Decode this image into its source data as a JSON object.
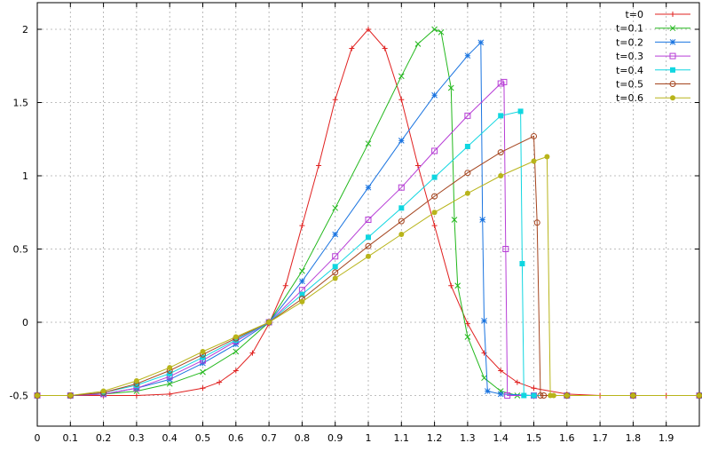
{
  "chart_data": {
    "type": "line",
    "title": "",
    "xlabel": "",
    "ylabel": "",
    "xlim": [
      0,
      2
    ],
    "ylim": [
      -0.5,
      2
    ],
    "grid": true,
    "legend_position": "top-right",
    "x_ticks": [
      "0",
      "0.1",
      "0.2",
      "0.3",
      "0.4",
      "0.5",
      "0.6",
      "0.7",
      "0.8",
      "0.9",
      "1",
      "1.1",
      "1.2",
      "1.3",
      "1.4",
      "1.5",
      "1.6",
      "1.7",
      "1.8",
      "1.9"
    ],
    "y_ticks": [
      "-0.5",
      "0",
      "0.5",
      "1",
      "1.5",
      "2"
    ],
    "series": [
      {
        "name": "t=0",
        "color": "#e0201f",
        "marker": "plus",
        "x": [
          0,
          0.1,
          0.2,
          0.3,
          0.4,
          0.5,
          0.55,
          0.6,
          0.65,
          0.7,
          0.75,
          0.8,
          0.85,
          0.9,
          0.95,
          1.0,
          1.05,
          1.1,
          1.15,
          1.2,
          1.25,
          1.3,
          1.35,
          1.4,
          1.45,
          1.5,
          1.6,
          1.7,
          1.8,
          1.9,
          2.0
        ],
        "y": [
          -0.5,
          -0.5,
          -0.5,
          -0.5,
          -0.49,
          -0.45,
          -0.41,
          -0.33,
          -0.21,
          -0.01,
          0.25,
          0.66,
          1.07,
          1.52,
          1.87,
          2.0,
          1.87,
          1.52,
          1.07,
          0.66,
          0.25,
          -0.01,
          -0.21,
          -0.33,
          -0.41,
          -0.45,
          -0.49,
          -0.5,
          -0.5,
          -0.5,
          -0.5
        ]
      },
      {
        "name": "t=0.1",
        "color": "#22b81c",
        "marker": "cross",
        "x": [
          0,
          0.1,
          0.2,
          0.3,
          0.4,
          0.5,
          0.6,
          0.7,
          0.8,
          0.9,
          1.0,
          1.1,
          1.15,
          1.2,
          1.22,
          1.25,
          1.26,
          1.27,
          1.3,
          1.35,
          1.4,
          1.45,
          1.5,
          1.6,
          1.8,
          2.0
        ],
        "y": [
          -0.5,
          -0.5,
          -0.49,
          -0.47,
          -0.42,
          -0.34,
          -0.2,
          0.0,
          0.35,
          0.78,
          1.22,
          1.68,
          1.9,
          2.0,
          1.98,
          1.6,
          0.7,
          0.25,
          -0.1,
          -0.38,
          -0.47,
          -0.5,
          -0.5,
          -0.5,
          -0.5,
          -0.5
        ]
      },
      {
        "name": "t=0.2",
        "color": "#1a74e0",
        "marker": "star",
        "x": [
          0,
          0.1,
          0.2,
          0.3,
          0.4,
          0.5,
          0.6,
          0.7,
          0.8,
          0.9,
          1.0,
          1.1,
          1.2,
          1.3,
          1.34,
          1.345,
          1.35,
          1.36,
          1.4,
          1.5,
          1.6,
          1.8,
          2.0
        ],
        "y": [
          -0.5,
          -0.5,
          -0.49,
          -0.45,
          -0.39,
          -0.28,
          -0.15,
          0.0,
          0.28,
          0.6,
          0.92,
          1.24,
          1.55,
          1.82,
          1.91,
          0.7,
          0.01,
          -0.47,
          -0.49,
          -0.5,
          -0.5,
          -0.5,
          -0.5
        ]
      },
      {
        "name": "t=0.3",
        "color": "#b73ed6",
        "marker": "square",
        "x": [
          0,
          0.1,
          0.2,
          0.3,
          0.4,
          0.5,
          0.6,
          0.7,
          0.8,
          0.9,
          1.0,
          1.1,
          1.2,
          1.3,
          1.4,
          1.41,
          1.415,
          1.42,
          1.5,
          1.6,
          1.8,
          2.0
        ],
        "y": [
          -0.5,
          -0.5,
          -0.49,
          -0.45,
          -0.37,
          -0.26,
          -0.13,
          0.0,
          0.22,
          0.45,
          0.7,
          0.92,
          1.17,
          1.41,
          1.63,
          1.64,
          0.5,
          -0.5,
          -0.5,
          -0.5,
          -0.5,
          -0.5
        ]
      },
      {
        "name": "t=0.4",
        "color": "#10d6e0",
        "marker": "filled-square",
        "x": [
          0,
          0.1,
          0.2,
          0.3,
          0.4,
          0.5,
          0.6,
          0.7,
          0.8,
          0.9,
          1.0,
          1.1,
          1.2,
          1.3,
          1.4,
          1.46,
          1.465,
          1.47,
          1.5,
          1.6,
          1.8,
          2.0
        ],
        "y": [
          -0.5,
          -0.5,
          -0.48,
          -0.43,
          -0.35,
          -0.24,
          -0.12,
          0.0,
          0.19,
          0.38,
          0.58,
          0.78,
          0.99,
          1.2,
          1.41,
          1.44,
          0.4,
          -0.5,
          -0.5,
          -0.5,
          -0.5,
          -0.5
        ]
      },
      {
        "name": "t=0.5",
        "color": "#a4441e",
        "marker": "circle",
        "x": [
          0,
          0.1,
          0.2,
          0.3,
          0.4,
          0.5,
          0.6,
          0.7,
          0.8,
          0.9,
          1.0,
          1.1,
          1.2,
          1.3,
          1.4,
          1.5,
          1.51,
          1.52,
          1.53,
          1.6,
          1.8,
          2.0
        ],
        "y": [
          -0.5,
          -0.5,
          -0.48,
          -0.42,
          -0.33,
          -0.22,
          -0.11,
          0.0,
          0.16,
          0.34,
          0.52,
          0.69,
          0.86,
          1.02,
          1.16,
          1.27,
          0.68,
          -0.5,
          -0.5,
          -0.5,
          -0.5,
          -0.5
        ]
      },
      {
        "name": "t=0.6",
        "color": "#b8b41a",
        "marker": "filled-circle",
        "x": [
          0,
          0.1,
          0.2,
          0.3,
          0.4,
          0.5,
          0.6,
          0.7,
          0.8,
          0.9,
          1.0,
          1.1,
          1.2,
          1.3,
          1.4,
          1.5,
          1.54,
          1.55,
          1.56,
          1.6,
          1.8,
          2.0
        ],
        "y": [
          -0.5,
          -0.5,
          -0.47,
          -0.4,
          -0.31,
          -0.2,
          -0.1,
          0.0,
          0.14,
          0.3,
          0.45,
          0.6,
          0.75,
          0.88,
          1.0,
          1.1,
          1.13,
          -0.5,
          -0.5,
          -0.5,
          -0.5,
          -0.5
        ]
      }
    ]
  }
}
